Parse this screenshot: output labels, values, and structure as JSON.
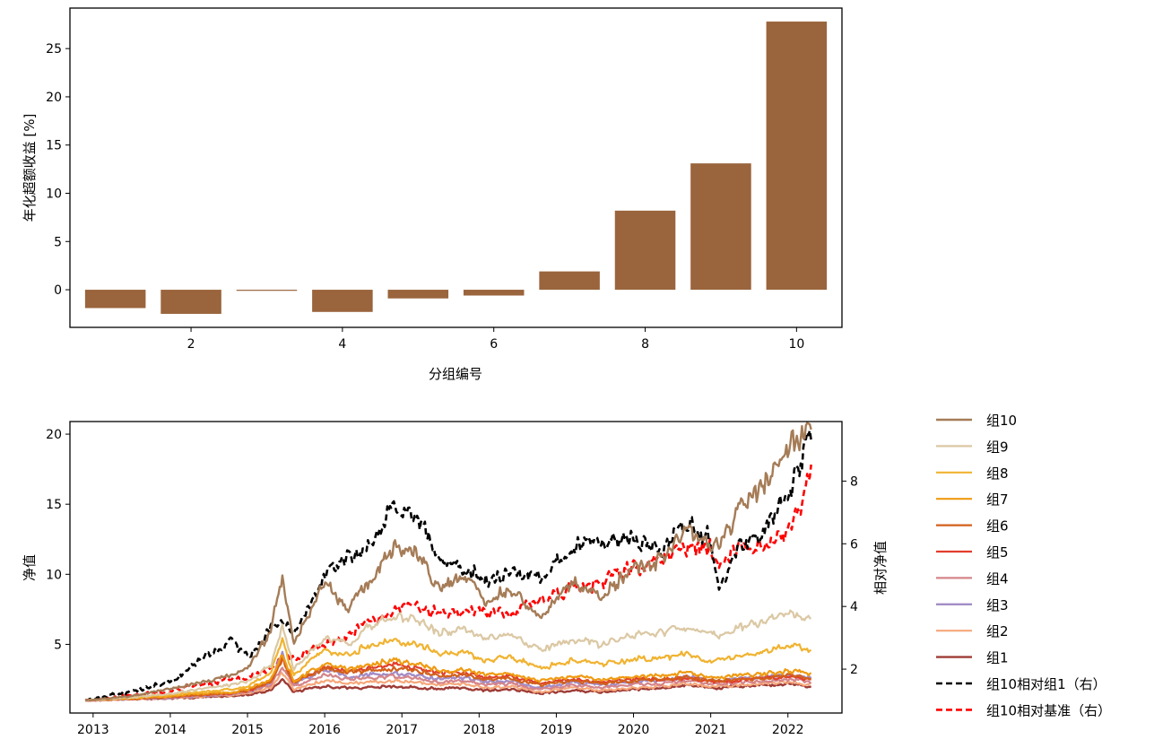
{
  "chart_data": [
    {
      "type": "bar",
      "title": "",
      "xlabel": "分组编号",
      "ylabel": "年化超额收益 [%]",
      "categories": [
        1,
        2,
        3,
        4,
        5,
        6,
        7,
        8,
        9,
        10
      ],
      "values": [
        -1.9,
        -2.5,
        -0.1,
        -2.3,
        -0.9,
        -0.6,
        1.9,
        8.2,
        13.1,
        27.8
      ],
      "xticks": [
        2,
        4,
        6,
        8,
        10
      ],
      "yticks": [
        0,
        5,
        10,
        15,
        20,
        25
      ],
      "xlim": [
        0.4,
        10.6
      ],
      "ylim": [
        -3.9,
        29.2
      ],
      "color": "#9a643c",
      "grid": false
    },
    {
      "type": "line",
      "title": "",
      "xlabel": "",
      "ylabel": "净值",
      "ylabel_right": "相对净值",
      "xticks": [
        2013,
        2014,
        2015,
        2016,
        2017,
        2018,
        2019,
        2020,
        2021,
        2022
      ],
      "yticks_left": [
        5,
        10,
        15,
        20
      ],
      "yticks_right": [
        2,
        4,
        6,
        8
      ],
      "xlim": [
        2012.7,
        2022.7
      ],
      "ylim_left": [
        0.1,
        20.9
      ],
      "ylim_right": [
        0.6,
        9.9
      ],
      "legend_position": "outside-right",
      "anchor_x": [
        2012.9,
        2013.5,
        2014.0,
        2014.4,
        2014.8,
        2015.0,
        2015.3,
        2015.45,
        2015.6,
        2016.0,
        2016.3,
        2016.5,
        2016.9,
        2017.2,
        2017.5,
        2017.8,
        2018.1,
        2018.4,
        2018.8,
        2019.2,
        2019.6,
        2020.0,
        2020.4,
        2020.7,
        2021.0,
        2021.1,
        2021.4,
        2021.7,
        2022.0,
        2022.3
      ],
      "series": [
        {
          "name": "组10",
          "axis": "left",
          "style": "solid",
          "color": "#a57c57",
          "width": 2.4,
          "values": [
            1.0,
            1.3,
            1.8,
            2.3,
            2.8,
            3.2,
            6.0,
            10.0,
            5.0,
            9.5,
            7.5,
            9.0,
            12.0,
            11.5,
            9.0,
            10.0,
            8.0,
            9.0,
            7.0,
            9.5,
            8.5,
            10.5,
            11.0,
            13.5,
            12.0,
            12.0,
            15.0,
            16.5,
            19.5,
            20.0
          ]
        },
        {
          "name": "组9",
          "axis": "left",
          "style": "solid",
          "color": "#dbc8a4",
          "width": 2.2,
          "values": [
            1.0,
            1.2,
            1.5,
            1.8,
            2.1,
            2.3,
            3.5,
            6.2,
            3.2,
            5.5,
            5.0,
            6.0,
            7.0,
            6.8,
            5.8,
            6.1,
            5.4,
            5.6,
            4.6,
            5.3,
            5.0,
            5.6,
            5.9,
            6.3,
            5.7,
            5.6,
            6.3,
            6.6,
            7.1,
            6.8
          ]
        },
        {
          "name": "组8",
          "axis": "left",
          "style": "solid",
          "color": "#f0b331",
          "width": 2.2,
          "values": [
            1.0,
            1.2,
            1.4,
            1.6,
            1.8,
            2.0,
            3.0,
            5.2,
            2.8,
            4.6,
            4.2,
            4.8,
            5.3,
            5.0,
            4.3,
            4.5,
            3.9,
            4.1,
            3.3,
            3.9,
            3.6,
            3.9,
            4.1,
            4.3,
            3.8,
            3.8,
            4.2,
            4.5,
            4.9,
            4.6
          ]
        },
        {
          "name": "组7",
          "axis": "left",
          "style": "solid",
          "color": "#ef9b12",
          "width": 2.2,
          "values": [
            1.0,
            1.15,
            1.3,
            1.5,
            1.6,
            1.8,
            2.5,
            4.2,
            2.4,
            3.6,
            3.2,
            3.5,
            3.8,
            3.6,
            3.1,
            3.2,
            2.8,
            2.9,
            2.4,
            2.7,
            2.5,
            2.7,
            2.8,
            3.0,
            2.6,
            2.6,
            2.8,
            2.9,
            3.1,
            2.9
          ]
        },
        {
          "name": "组6",
          "axis": "left",
          "style": "solid",
          "color": "#d2601b",
          "width": 2.2,
          "values": [
            1.0,
            1.12,
            1.25,
            1.4,
            1.5,
            1.7,
            2.3,
            3.9,
            2.3,
            3.3,
            3.0,
            3.1,
            3.3,
            3.1,
            2.7,
            2.8,
            2.5,
            2.6,
            2.1,
            2.4,
            2.2,
            2.4,
            2.5,
            2.7,
            2.4,
            2.4,
            2.5,
            2.6,
            2.8,
            2.6
          ]
        },
        {
          "name": "组5",
          "axis": "left",
          "style": "solid",
          "color": "#e23e2b",
          "width": 2.2,
          "values": [
            1.0,
            1.12,
            1.25,
            1.4,
            1.5,
            1.7,
            2.3,
            4.0,
            2.3,
            3.4,
            3.1,
            3.2,
            3.5,
            3.3,
            2.9,
            3.0,
            2.6,
            2.7,
            2.2,
            2.5,
            2.3,
            2.5,
            2.5,
            2.6,
            2.3,
            2.3,
            2.5,
            2.6,
            2.7,
            2.5
          ]
        },
        {
          "name": "组4",
          "axis": "left",
          "style": "solid",
          "color": "#d4848a",
          "width": 2.2,
          "values": [
            1.0,
            1.1,
            1.2,
            1.35,
            1.45,
            1.6,
            2.1,
            3.4,
            2.0,
            2.8,
            2.5,
            2.6,
            2.7,
            2.6,
            2.3,
            2.4,
            2.1,
            2.2,
            1.8,
            2.1,
            1.9,
            2.1,
            2.2,
            2.4,
            2.2,
            2.2,
            2.3,
            2.4,
            2.5,
            2.3
          ]
        },
        {
          "name": "组3",
          "axis": "left",
          "style": "solid",
          "color": "#a38cc6",
          "width": 2.4,
          "values": [
            1.0,
            1.1,
            1.2,
            1.3,
            1.45,
            1.6,
            2.2,
            4.3,
            2.2,
            3.2,
            2.7,
            2.8,
            2.9,
            2.8,
            2.5,
            2.6,
            2.3,
            2.4,
            1.9,
            2.3,
            2.1,
            2.3,
            2.4,
            2.7,
            2.4,
            2.4,
            2.6,
            2.7,
            2.8,
            2.6
          ]
        },
        {
          "name": "组2",
          "axis": "left",
          "style": "solid",
          "color": "#f6a77a",
          "width": 2.2,
          "values": [
            1.0,
            1.1,
            1.18,
            1.28,
            1.38,
            1.5,
            1.9,
            3.0,
            1.8,
            2.4,
            2.2,
            2.3,
            2.4,
            2.3,
            2.1,
            2.2,
            1.9,
            2.0,
            1.6,
            1.9,
            1.7,
            1.9,
            2.0,
            2.2,
            2.0,
            2.0,
            2.1,
            2.2,
            2.3,
            2.1
          ]
        },
        {
          "name": "组1",
          "axis": "left",
          "style": "solid",
          "color": "#9e3b36",
          "width": 2.4,
          "values": [
            1.0,
            1.08,
            1.15,
            1.22,
            1.3,
            1.4,
            1.7,
            2.5,
            1.6,
            2.0,
            1.9,
            1.9,
            2.0,
            1.9,
            1.8,
            1.9,
            1.7,
            1.8,
            1.5,
            1.7,
            1.6,
            1.8,
            1.9,
            2.1,
            1.9,
            1.9,
            2.0,
            2.1,
            2.2,
            2.0
          ]
        },
        {
          "name": "组10相对组1（右）",
          "axis": "right",
          "style": "dashed",
          "color": "#000000",
          "width": 2.6,
          "values": [
            1.0,
            1.3,
            1.6,
            2.3,
            2.9,
            2.4,
            3.3,
            3.5,
            3.2,
            5.0,
            5.6,
            5.8,
            7.1,
            6.9,
            5.5,
            5.2,
            4.8,
            5.1,
            5.0,
            5.8,
            6.2,
            6.1,
            5.9,
            6.6,
            6.1,
            4.5,
            6.2,
            6.4,
            7.6,
            9.5
          ]
        },
        {
          "name": "组10相对基准（右）",
          "axis": "right",
          "style": "dashed",
          "color": "#ff0000",
          "width": 2.6,
          "values": [
            1.0,
            1.15,
            1.3,
            1.5,
            1.7,
            1.7,
            2.0,
            2.4,
            2.3,
            2.8,
            3.1,
            3.4,
            3.8,
            4.0,
            3.7,
            3.8,
            3.9,
            3.8,
            4.2,
            4.6,
            4.8,
            5.2,
            5.6,
            5.9,
            5.8,
            5.2,
            5.9,
            5.9,
            6.4,
            8.1
          ]
        }
      ]
    }
  ]
}
